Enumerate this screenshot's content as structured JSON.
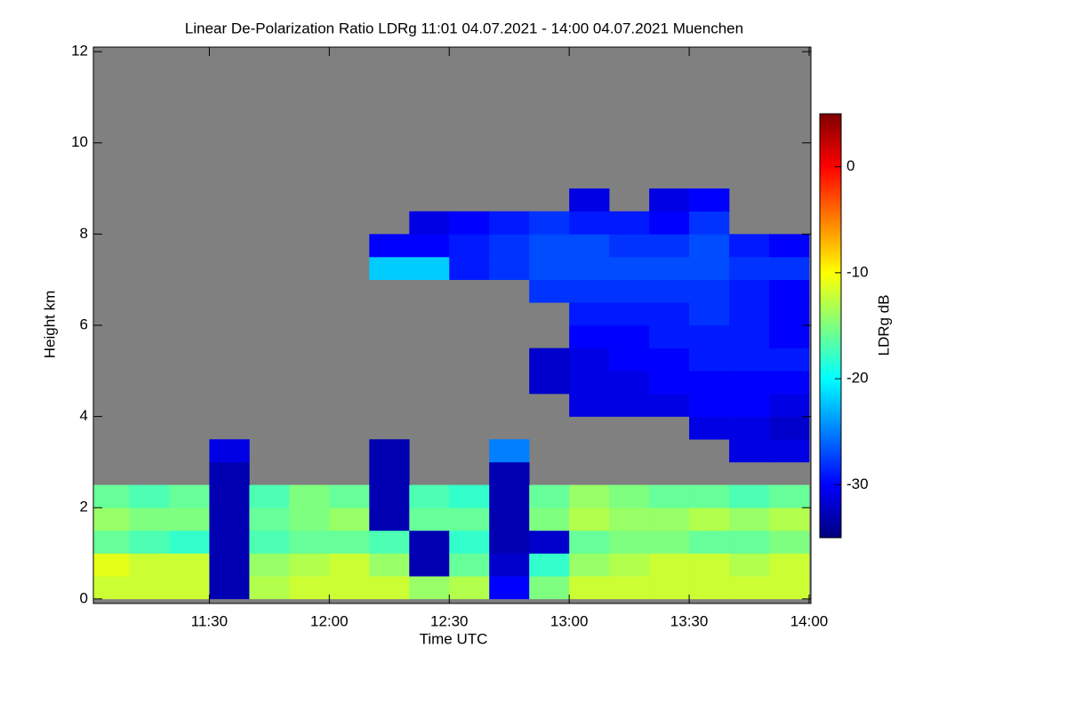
{
  "chart_data": {
    "type": "heatmap",
    "title": "Linear De-Polarization Ratio LDRg   11:01 04.07.2021 - 14:00 04.07.2021 Muenchen",
    "x_label": "Time UTC",
    "y_label": "Height km",
    "xlim": [
      661,
      840
    ],
    "xticks": [
      {
        "value": 690,
        "label": "11:30"
      },
      {
        "value": 720,
        "label": "12:00"
      },
      {
        "value": 750,
        "label": "12:30"
      },
      {
        "value": 780,
        "label": "13:00"
      },
      {
        "value": 810,
        "label": "13:30"
      },
      {
        "value": 840,
        "label": "14:00"
      }
    ],
    "ylim": [
      -0.1,
      12.1
    ],
    "yticks": [
      0,
      2,
      4,
      6,
      8,
      10,
      12
    ],
    "x_bins": [
      661,
      670,
      680,
      690,
      700,
      710,
      720,
      730,
      740,
      750,
      760,
      770,
      780,
      790,
      800,
      810,
      820,
      830,
      840
    ],
    "y_bins": [
      0,
      0.5,
      1,
      1.5,
      2,
      2.5,
      3,
      3.5,
      4,
      4.5,
      5,
      5.5,
      6,
      6.5,
      7,
      7.5,
      8,
      8.5,
      9
    ],
    "missing_color": "#808080",
    "values": [
      [
        -12,
        -12,
        -12,
        -33,
        -13,
        -12,
        -12,
        -12,
        -14,
        -13,
        -30,
        -15,
        -12,
        -12,
        -12,
        -12,
        -12,
        -12
      ],
      [
        -11,
        -12,
        -12,
        -33,
        -14,
        -13,
        -12,
        -14,
        -33,
        -16,
        -32,
        -18,
        -14,
        -13,
        -12,
        -12,
        -13,
        -12
      ],
      [
        -16,
        -17,
        -18,
        -33,
        -17,
        -16,
        -16,
        -17,
        -33,
        -18,
        -33,
        -32,
        -16,
        -15,
        -15,
        -16,
        -16,
        -15
      ],
      [
        -14,
        -15,
        -15,
        -33,
        -16,
        -15,
        -14,
        -33,
        -16,
        -16,
        -33,
        -15,
        -13,
        -14,
        -14,
        -13,
        -14,
        -13
      ],
      [
        -16,
        -17,
        -16,
        -33,
        -17,
        -15,
        -16,
        -33,
        -17,
        -18,
        -33,
        -16,
        -14,
        -15,
        -16,
        -16,
        -17,
        -16
      ],
      [
        null,
        null,
        null,
        -33,
        null,
        null,
        null,
        -33,
        null,
        null,
        -33,
        null,
        null,
        null,
        null,
        null,
        null,
        null
      ],
      [
        null,
        null,
        null,
        -31,
        null,
        null,
        null,
        -33,
        null,
        null,
        -25,
        null,
        null,
        null,
        null,
        null,
        -31,
        -31
      ],
      [
        null,
        null,
        null,
        null,
        null,
        null,
        null,
        null,
        null,
        null,
        null,
        null,
        null,
        null,
        null,
        -31,
        -31,
        -32
      ],
      [
        null,
        null,
        null,
        null,
        null,
        null,
        null,
        null,
        null,
        null,
        null,
        null,
        -31,
        -31,
        -31,
        -30,
        -30,
        -31
      ],
      [
        null,
        null,
        null,
        null,
        null,
        null,
        null,
        null,
        null,
        null,
        null,
        -32,
        -31,
        -31,
        -30,
        -30,
        -30,
        -30
      ],
      [
        null,
        null,
        null,
        null,
        null,
        null,
        null,
        null,
        null,
        null,
        null,
        -32,
        -31,
        -30,
        -30,
        -29,
        -29,
        -29
      ],
      [
        null,
        null,
        null,
        null,
        null,
        null,
        null,
        null,
        null,
        null,
        null,
        null,
        -30,
        -30,
        -29,
        -29,
        -29,
        -30
      ],
      [
        null,
        null,
        null,
        null,
        null,
        null,
        null,
        null,
        null,
        null,
        null,
        null,
        -29,
        -29,
        -29,
        -28,
        -29,
        -30
      ],
      [
        null,
        null,
        null,
        null,
        null,
        null,
        null,
        null,
        null,
        null,
        null,
        -28,
        -28,
        -28,
        -28,
        -28,
        -29,
        -30
      ],
      [
        null,
        null,
        null,
        null,
        null,
        null,
        null,
        -22,
        -22,
        -29,
        -28,
        -27,
        -27,
        -27,
        -27,
        -27,
        -28,
        -28
      ],
      [
        null,
        null,
        null,
        null,
        null,
        null,
        null,
        -30,
        -30,
        -29,
        -28,
        -27,
        -27,
        -28,
        -28,
        -27,
        -29,
        -30
      ],
      [
        null,
        null,
        null,
        null,
        null,
        null,
        null,
        null,
        -31,
        -30,
        -29,
        -28,
        -29,
        -29,
        -30,
        -28,
        null,
        null
      ],
      [
        null,
        null,
        null,
        null,
        null,
        null,
        null,
        null,
        null,
        null,
        null,
        null,
        -31,
        null,
        -31,
        -30,
        null,
        null
      ]
    ],
    "colorbar": {
      "label": "LDRg dB",
      "lim": [
        -35,
        5
      ],
      "ticks": [
        0,
        -10,
        -20,
        -30
      ],
      "colors": [
        "#00007f",
        "#0000ff",
        "#007fff",
        "#00ffff",
        "#7fff7f",
        "#ffff00",
        "#ff7f00",
        "#ff0000",
        "#7f0000"
      ]
    }
  }
}
